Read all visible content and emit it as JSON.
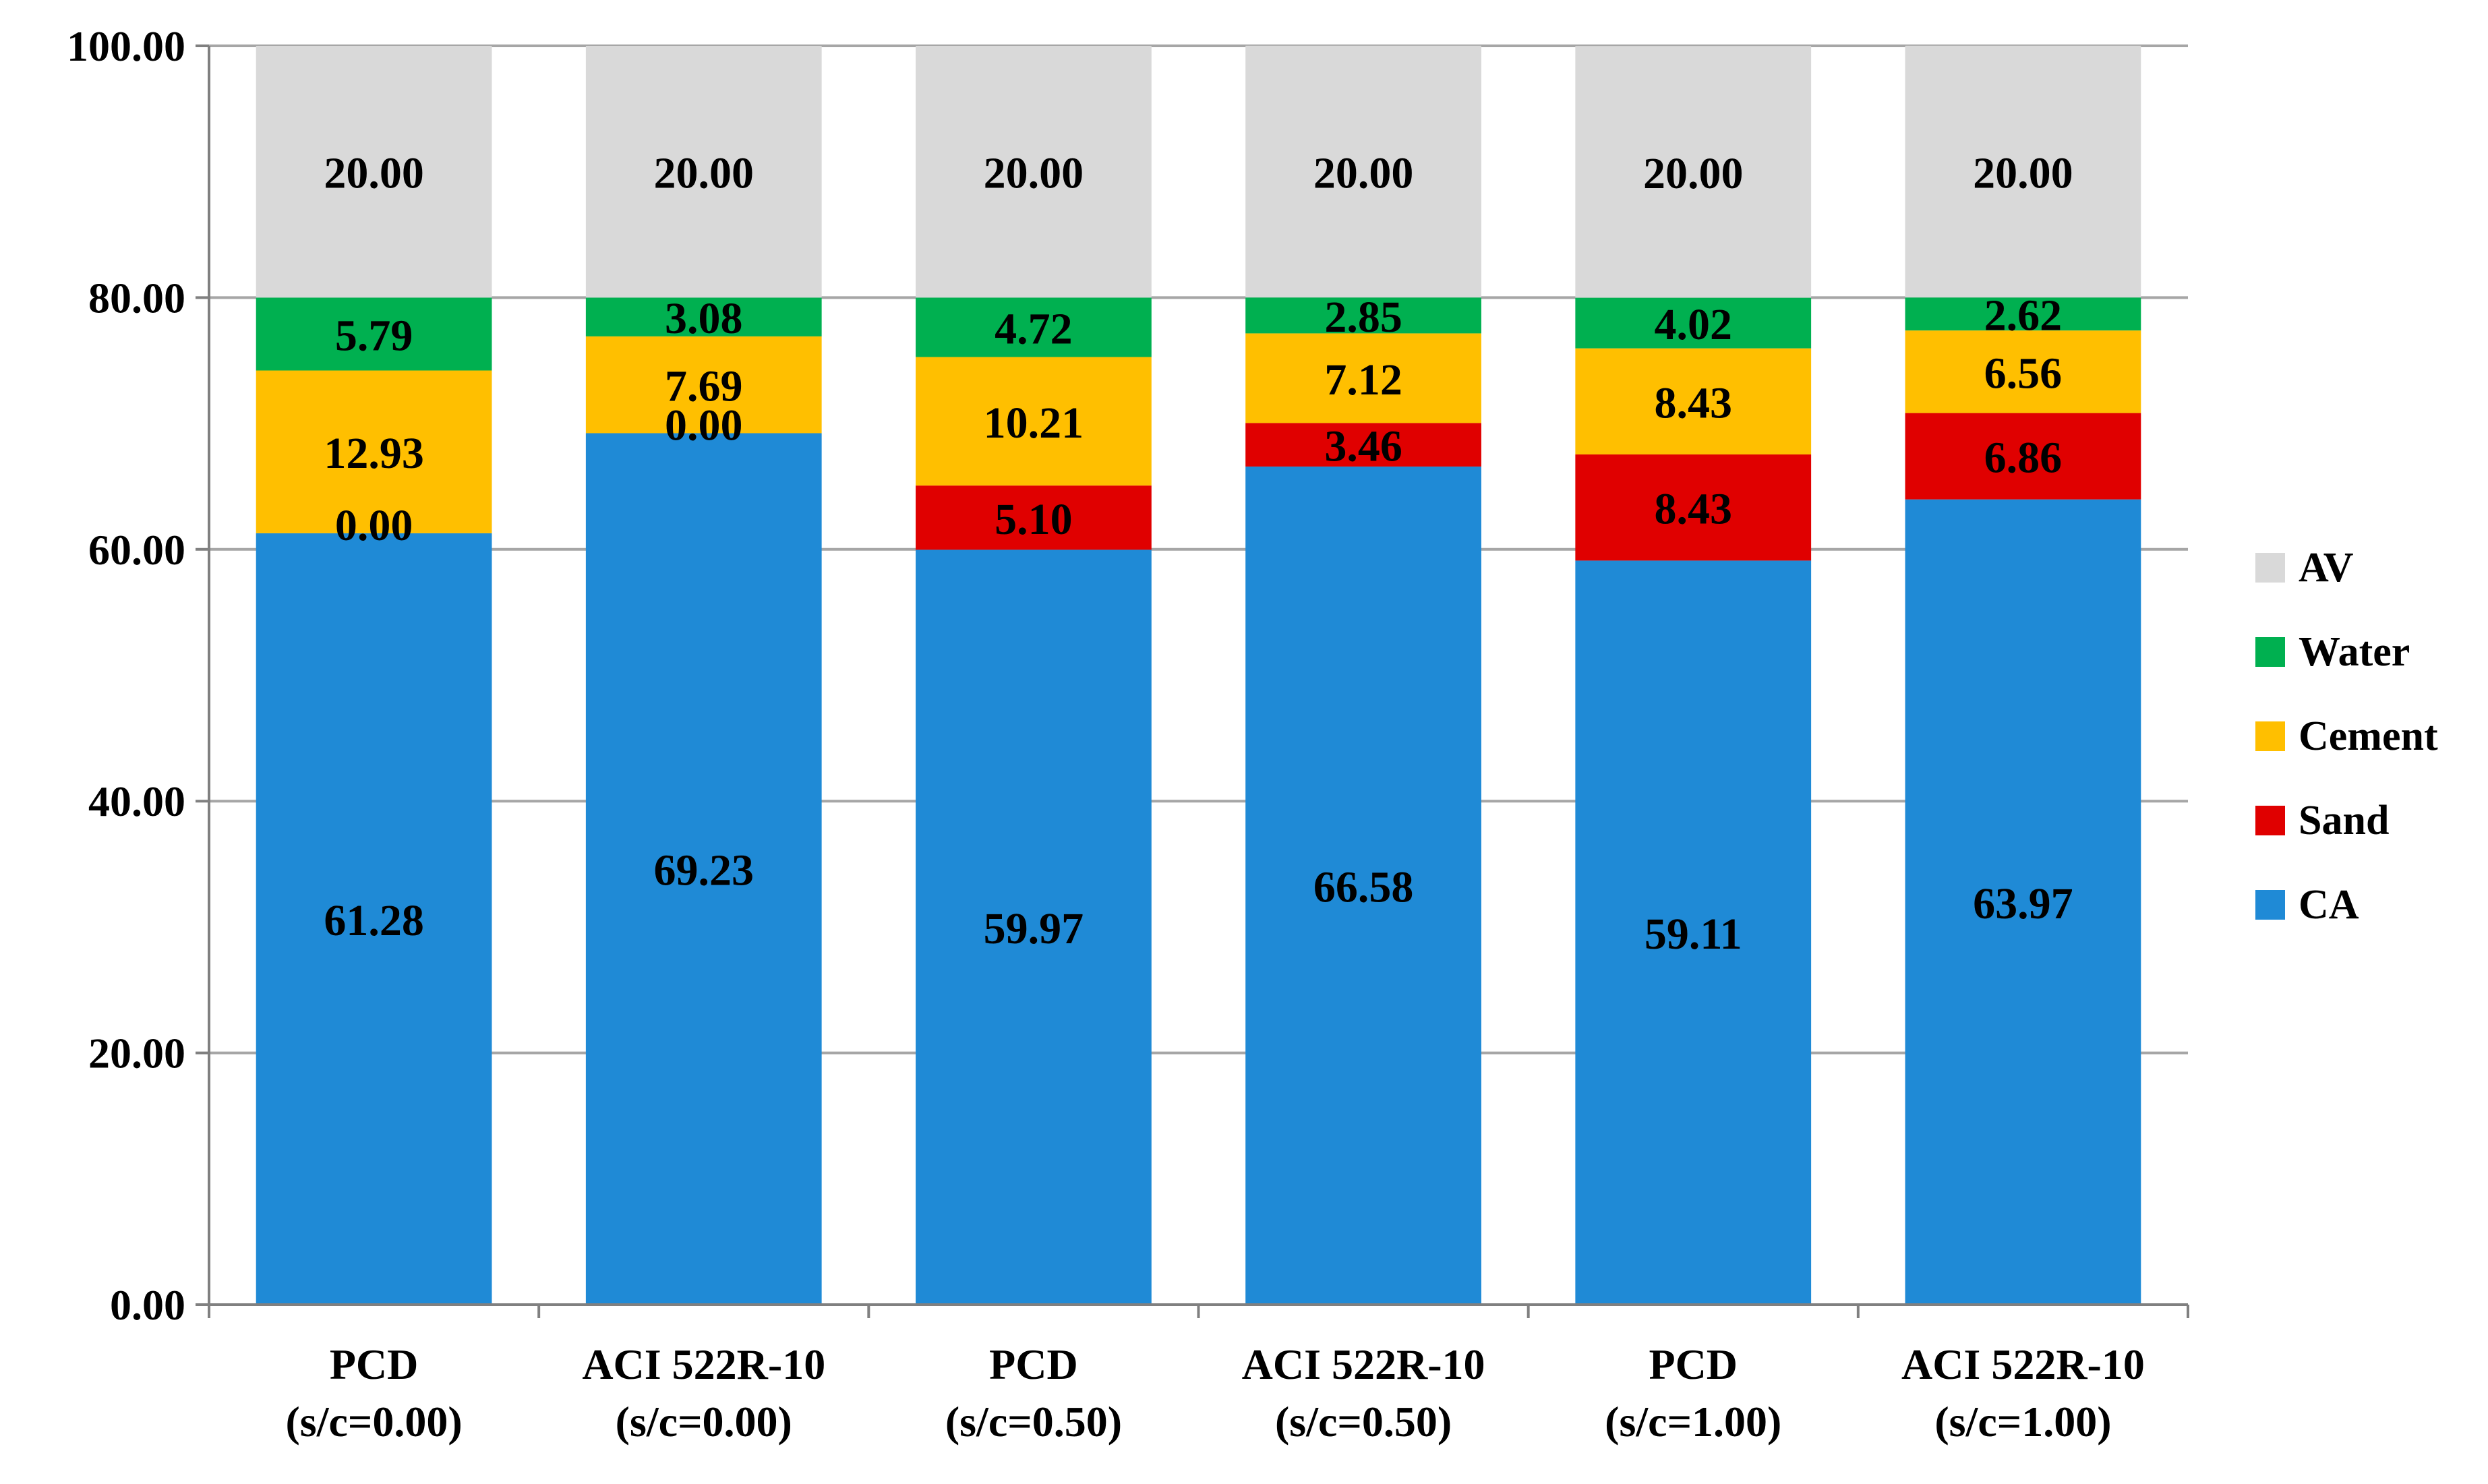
{
  "chart_data": {
    "type": "bar",
    "stacked": true,
    "title": "",
    "xlabel": "",
    "ylabel": "",
    "ylim": [
      0,
      100
    ],
    "yticks": [
      0,
      20,
      40,
      60,
      80,
      100
    ],
    "ytick_labels": [
      "0.00",
      "20.00",
      "40.00",
      "60.00",
      "80.00",
      "100.00"
    ],
    "grid": true,
    "legend_position": "right",
    "categories": [
      [
        "PCD",
        "(s/c=0.00)"
      ],
      [
        "ACI 522R-10",
        "(s/c=0.00)"
      ],
      [
        "PCD",
        "(s/c=0.50)"
      ],
      [
        "ACI 522R-10",
        "(s/c=0.50)"
      ],
      [
        "PCD",
        "(s/c=1.00)"
      ],
      [
        "ACI 522R-10",
        "(s/c=1.00)"
      ]
    ],
    "series": [
      {
        "name": "CA",
        "color": "#1f8ad6",
        "values": [
          61.28,
          69.23,
          59.97,
          66.58,
          59.11,
          63.97
        ],
        "labels": [
          "61.28",
          "69.23",
          "59.97",
          "66.58",
          "59.11",
          "63.97"
        ]
      },
      {
        "name": "Sand",
        "color": "#e00000",
        "values": [
          0.0,
          0.0,
          5.1,
          3.46,
          8.43,
          6.86
        ],
        "labels": [
          "0.00",
          "0.00",
          "5.10",
          "3.46",
          "8.43",
          "6.86"
        ]
      },
      {
        "name": "Cement",
        "color": "#ffbf00",
        "values": [
          12.93,
          7.69,
          10.21,
          7.12,
          8.43,
          6.56
        ],
        "labels": [
          "12.93",
          "7.69",
          "10.21",
          "7.12",
          "8.43",
          "6.56"
        ]
      },
      {
        "name": "Water",
        "color": "#00b050",
        "values": [
          5.79,
          3.08,
          4.72,
          2.85,
          4.02,
          2.62
        ],
        "labels": [
          "5.79",
          "3.08",
          "4.72",
          "2.85",
          "4.02",
          "2.62"
        ]
      },
      {
        "name": "AV",
        "color": "#d9d9d9",
        "values": [
          20.0,
          20.0,
          20.0,
          20.0,
          20.0,
          20.0
        ],
        "labels": [
          "20.00",
          "20.00",
          "20.00",
          "20.00",
          "20.00",
          "20.00"
        ]
      }
    ],
    "legend_order": [
      "AV",
      "Water",
      "Cement",
      "Sand",
      "CA"
    ]
  },
  "colors": {
    "grid": "#a6a6a6",
    "axis": "#808080"
  }
}
